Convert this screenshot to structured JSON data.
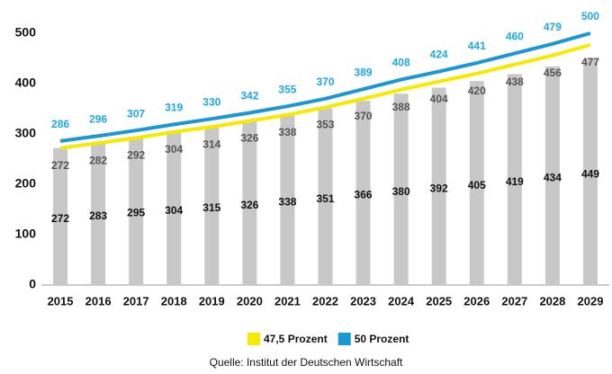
{
  "chart_data": {
    "type": "bar_line",
    "categories": [
      "2015",
      "2016",
      "2017",
      "2018",
      "2019",
      "2020",
      "2021",
      "2022",
      "2023",
      "2024",
      "2025",
      "2026",
      "2027",
      "2028",
      "2029"
    ],
    "series": [
      {
        "type": "bar",
        "color": "#c8c8c8",
        "label_color": "#111111",
        "values": [
          272,
          283,
          295,
          304,
          315,
          326,
          338,
          351,
          366,
          380,
          392,
          405,
          419,
          434,
          449
        ]
      },
      {
        "type": "line",
        "name": "47,5 Prozent",
        "color": "#f7ea00",
        "label_color": "#555555",
        "values": [
          272,
          282,
          292,
          304,
          314,
          326,
          338,
          353,
          370,
          388,
          404,
          420,
          438,
          456,
          477
        ]
      },
      {
        "type": "line",
        "name": "50 Prozent",
        "color": "#1b97d4",
        "label_color": "#1ea7e4",
        "values": [
          286,
          296,
          307,
          319,
          330,
          342,
          355,
          370,
          389,
          408,
          424,
          441,
          460,
          479,
          500
        ]
      }
    ],
    "ylim": [
      0,
      500
    ],
    "yticks": [
      0,
      100,
      200,
      300,
      400,
      500
    ],
    "grid": false,
    "legend": "bottom",
    "source": "Quelle: Institut der Deutschen Wirtschaft"
  }
}
